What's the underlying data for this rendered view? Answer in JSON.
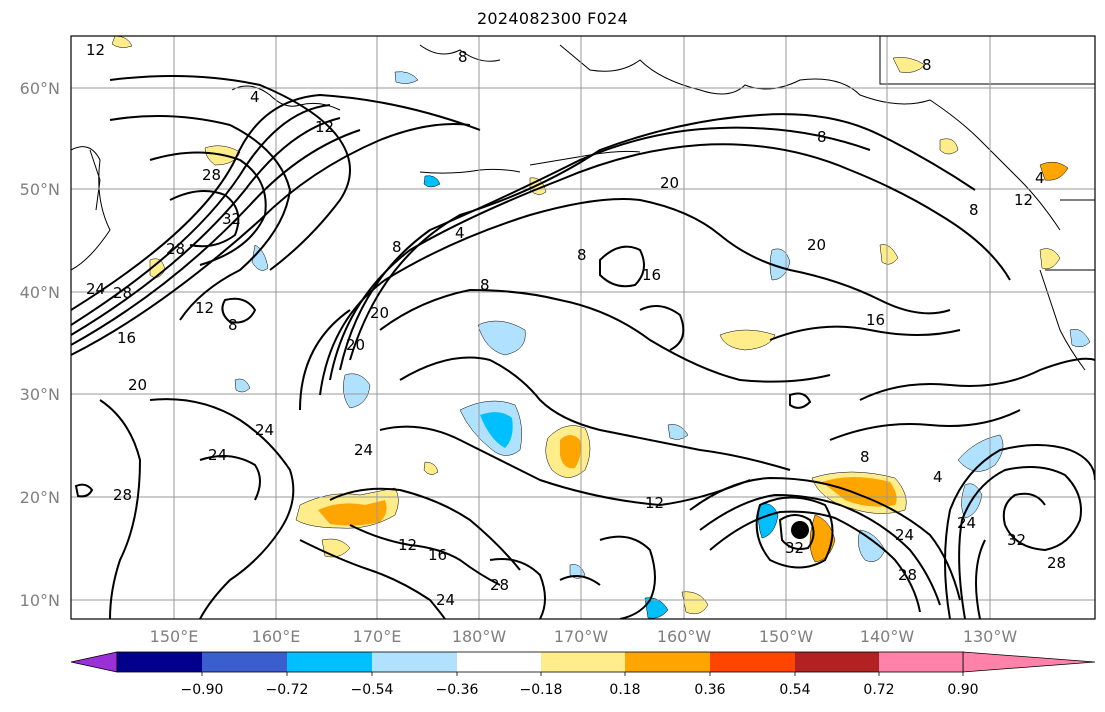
{
  "title": "2024082300 F024",
  "lat_ticks": [
    "10°N",
    "20°N",
    "30°N",
    "40°N",
    "50°N",
    "60°N"
  ],
  "lon_ticks": [
    "150°E",
    "160°E",
    "170°E",
    "180°W",
    "170°W",
    "160°W",
    "150°W",
    "140°W",
    "130°W"
  ],
  "colorbar": {
    "ticks": [
      "−0.90",
      "−0.72",
      "−0.54",
      "−0.36",
      "−0.18",
      "0.18",
      "0.36",
      "0.54",
      "0.72",
      "0.90"
    ],
    "colors": [
      "#9b30d9",
      "#00008b",
      "#3a5fcd",
      "#00bfff",
      "#b0e2ff",
      "#ffffff",
      "#ffec8b",
      "#ffa500",
      "#ff4500",
      "#b22222",
      "#ff82ab"
    ]
  },
  "contour_labels": [
    "12",
    "4",
    "8",
    "12",
    "28",
    "32",
    "28",
    "24",
    "28",
    "16",
    "12",
    "8",
    "4",
    "8",
    "20",
    "20",
    "20",
    "20",
    "8",
    "8",
    "16",
    "16",
    "20",
    "8",
    "12",
    "4",
    "8",
    "24",
    "24",
    "24",
    "28",
    "12",
    "16",
    "24",
    "28",
    "12",
    "8",
    "4",
    "32",
    "24",
    "28",
    "32",
    "28",
    "24",
    "8"
  ]
}
